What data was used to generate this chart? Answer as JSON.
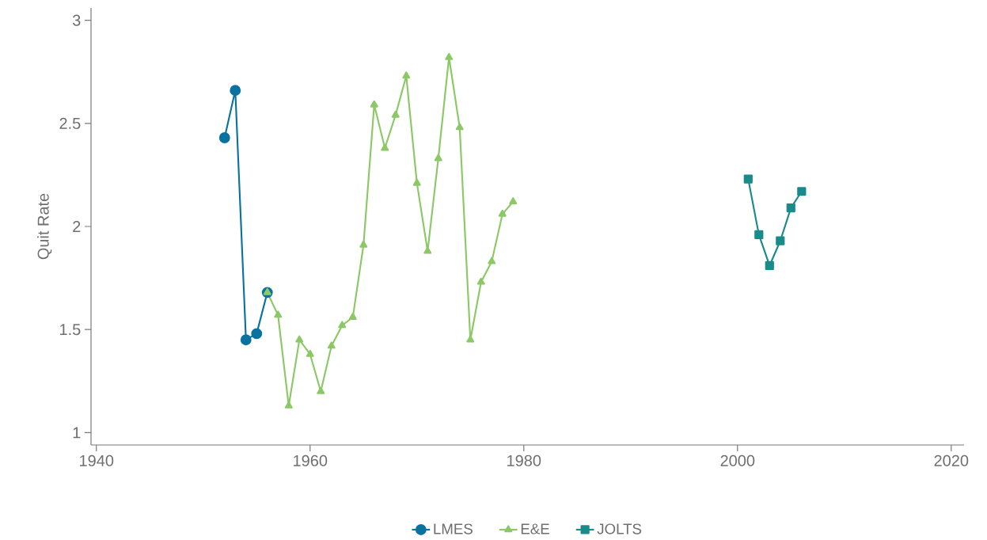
{
  "chart_data": {
    "type": "line",
    "ylabel": "Quit Rate",
    "xlim": [
      1939.5,
      2021.2
    ],
    "ylim": [
      0.94,
      3.06
    ],
    "xticks": [
      1940,
      1960,
      1980,
      2000,
      2020
    ],
    "yticks": [
      1,
      1.5,
      2,
      2.5,
      3
    ],
    "grid": false,
    "legend": "bottom",
    "line_style": "solid",
    "series": [
      {
        "name": "LMES",
        "color": "#0a72a0",
        "marker": "circle",
        "x": [
          1952,
          1953,
          1954,
          1955,
          1956
        ],
        "values": [
          2.43,
          2.66,
          1.45,
          1.48,
          1.68
        ]
      },
      {
        "name": "E&E",
        "color": "#8cc866",
        "marker": "triangle",
        "x": [
          1956,
          1957,
          1958,
          1959,
          1960,
          1961,
          1962,
          1963,
          1964,
          1965,
          1966,
          1967,
          1968,
          1969,
          1970,
          1971,
          1972,
          1973,
          1974,
          1975,
          1976,
          1977,
          1978,
          1979
        ],
        "values": [
          1.68,
          1.57,
          1.13,
          1.45,
          1.38,
          1.2,
          1.42,
          1.52,
          1.56,
          1.91,
          2.59,
          2.38,
          2.54,
          2.73,
          2.21,
          1.88,
          2.33,
          2.82,
          2.48,
          1.45,
          1.73,
          1.83,
          2.06,
          2.12
        ]
      },
      {
        "name": "JOLTS",
        "color": "#1a8a8a",
        "marker": "square",
        "x": [
          2001,
          2002,
          2003,
          2004,
          2005,
          2006
        ],
        "values": [
          2.23,
          1.96,
          1.81,
          1.93,
          2.09,
          2.17
        ]
      }
    ]
  }
}
